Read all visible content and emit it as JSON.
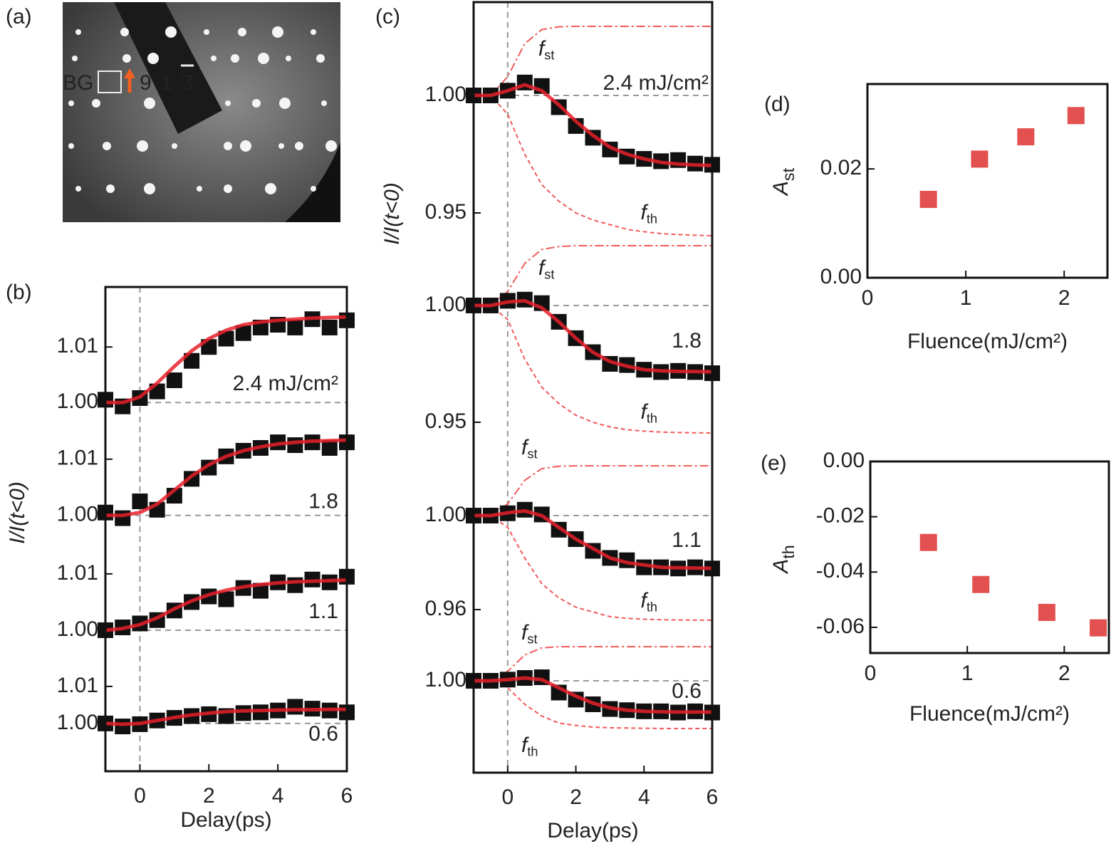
{
  "chart_data": [
    {
      "type": "image",
      "label": "(a)",
      "texts": [
        "BG",
        "9 1 3̄"
      ]
    },
    {
      "type": "stacked",
      "label": "(b)",
      "xlabel": "Delay(ps)",
      "ylabel": "I/I(t<0)",
      "xlim": [
        -1,
        6
      ],
      "xticks": [
        0,
        2,
        4,
        6
      ],
      "point_color": "#111111",
      "fit_color": "#e8202a",
      "x": [
        -1,
        -0.5,
        0,
        0.5,
        1,
        1.5,
        2,
        2.5,
        3,
        3.5,
        4,
        4.5,
        5,
        5.5,
        6
      ],
      "traces": [
        {
          "annotation": "2.4 mJ/cm²",
          "ylim": [
            0.999,
            1.0208
          ],
          "yticks": [
            {
              "value": 1,
              "label": "1.00"
            },
            1.01
          ],
          "baseline": 1,
          "points": [
            1.0005,
            0.9993,
            1.0008,
            1.002,
            1.004,
            1.0075,
            1.01,
            1.0115,
            1.0125,
            1.0135,
            1.014,
            1.0135,
            1.015,
            1.0135,
            1.0148
          ],
          "fit": [
            1.0,
            1.0,
            1.001,
            1.0035,
            1.0065,
            1.0093,
            1.0115,
            1.013,
            1.014,
            1.0145,
            1.0148,
            1.015,
            1.0152,
            1.0153,
            1.0154
          ]
        },
        {
          "annotation": "1.8",
          "ylim": [
            0.9973,
            1.0191
          ],
          "yticks": [
            {
              "value": 1,
              "label": "1.00"
            },
            1.01
          ],
          "baseline": 1,
          "points": [
            1.0005,
            0.9995,
            1.0025,
            1.001,
            1.0035,
            1.0065,
            1.0085,
            1.0105,
            1.0115,
            1.012,
            1.013,
            1.0125,
            1.013,
            1.012,
            1.013
          ],
          "fit": [
            1.0,
            1.0,
            1.0005,
            1.002,
            1.0045,
            1.007,
            1.009,
            1.0105,
            1.0115,
            1.0122,
            1.0127,
            1.013,
            1.0132,
            1.0133,
            1.0134
          ]
        },
        {
          "annotation": "1.1",
          "ylim": [
            0.9962,
            1.0177
          ],
          "yticks": [
            {
              "value": 1,
              "label": "1.00"
            },
            1.01
          ],
          "baseline": 1,
          "points": [
            1.0,
            1.0005,
            1.0012,
            1.0018,
            1.0035,
            1.005,
            1.006,
            1.0055,
            1.0075,
            1.007,
            1.0085,
            1.008,
            1.009,
            1.0085,
            1.0095
          ],
          "fit": [
            1.0,
            1.0003,
            1.001,
            1.0022,
            1.0038,
            1.0052,
            1.0063,
            1.0071,
            1.0077,
            1.0081,
            1.0084,
            1.0086,
            1.0087,
            1.0088,
            1.0089
          ]
        },
        {
          "annotation": "0.6",
          "ylim": [
            0.9871,
            1.0194
          ],
          "yticks": [
            {
              "value": 1,
              "label": "1.00"
            },
            1.01
          ],
          "baseline": 1,
          "points": [
            1.0,
            0.9992,
            0.9998,
            1.0008,
            1.0015,
            1.002,
            1.0025,
            1.002,
            1.0028,
            1.003,
            1.0035,
            1.0045,
            1.004,
            1.0035,
            1.003
          ],
          "fit": [
            1.0,
            0.9998,
            1.0,
            1.0008,
            1.0016,
            1.0023,
            1.0028,
            1.0032,
            1.0034,
            1.0035,
            1.0036,
            1.0037,
            1.0037,
            1.0038,
            1.0038
          ]
        }
      ]
    },
    {
      "type": "stacked",
      "label": "(c)",
      "xlabel": "Delay(ps)",
      "ylabel": "I/I(t<0)",
      "xlim": [
        -1,
        6
      ],
      "xticks": [
        0,
        2,
        4,
        6
      ],
      "point_color": "#111111",
      "fit_color": "#e8202a",
      "component_color": "#f05a5a",
      "x": [
        -1,
        -0.5,
        0,
        0.5,
        1,
        1.5,
        2,
        2.5,
        3,
        3.5,
        4,
        4.5,
        5,
        5.5,
        6
      ],
      "traces": [
        {
          "annotation": "2.4 mJ/cm²",
          "ylim": [
            0.93,
            1.0397
          ],
          "yticks": [
            {
              "value": 1,
              "label": "1.00"
            },
            0.95
          ],
          "baseline": 1,
          "st_label": {
            "symbol": "f",
            "subscript": "st"
          },
          "th_label": {
            "symbol": "f",
            "subscript": "th"
          },
          "points": [
            1.0,
            1.0,
            1.002,
            1.0055,
            1.004,
            0.995,
            0.987,
            0.982,
            0.977,
            0.974,
            0.973,
            0.972,
            0.9725,
            0.971,
            0.9705
          ],
          "fit": [
            1.0,
            1.0,
            1.002,
            1.0045,
            1.002,
            0.996,
            0.989,
            0.983,
            0.978,
            0.975,
            0.973,
            0.9715,
            0.9708,
            0.9704,
            0.9702
          ],
          "st": [
            1.0,
            1.0,
            1.008,
            1.022,
            1.028,
            1.0292,
            1.0294,
            1.0294,
            1.0294,
            1.0294,
            1.0294,
            1.0294,
            1.0294,
            1.0294,
            1.0294
          ],
          "th": [
            1.0,
            1.0,
            0.992,
            0.975,
            0.962,
            0.955,
            0.95,
            0.947,
            0.945,
            0.943,
            0.942,
            0.9412,
            0.9408,
            0.9405,
            0.9403
          ]
        },
        {
          "annotation": "1.8",
          "ylim": [
            0.9387,
            1.0195
          ],
          "yticks": [
            {
              "value": 1,
              "label": "1.00"
            },
            0.95
          ],
          "baseline": 1,
          "st_label": {
            "symbol": "f",
            "subscript": "st"
          },
          "th_label": {
            "symbol": "f",
            "subscript": "th"
          },
          "points": [
            1.0,
            1.0,
            1.002,
            1.0025,
            1.001,
            0.993,
            0.986,
            0.98,
            0.975,
            0.9745,
            0.9725,
            0.9715,
            0.972,
            0.9715,
            0.971
          ],
          "fit": [
            1.0,
            1.0,
            1.0015,
            1.002,
            0.999,
            0.993,
            0.986,
            0.98,
            0.976,
            0.974,
            0.9725,
            0.972,
            0.9718,
            0.9717,
            0.9716
          ],
          "st": [
            1.0,
            1.0,
            1.006,
            1.018,
            1.024,
            1.0252,
            1.0256,
            1.0256,
            1.0256,
            1.0256,
            1.0256,
            1.0256,
            1.0256,
            1.0256,
            1.0256
          ],
          "th": [
            1.0,
            1.0,
            0.994,
            0.977,
            0.965,
            0.958,
            0.953,
            0.95,
            0.948,
            0.9468,
            0.9462,
            0.9458,
            0.9456,
            0.9455,
            0.9454
          ]
        },
        {
          "annotation": "1.1",
          "ylim": [
            0.9497,
            1.0285
          ],
          "yticks": [
            {
              "value": 1,
              "label": "1.00"
            },
            0.96
          ],
          "baseline": 1,
          "st_label": {
            "symbol": "f",
            "subscript": "st"
          },
          "th_label": {
            "symbol": "f",
            "subscript": "th"
          },
          "points": [
            1.0,
            1.0,
            1.001,
            1.0025,
            1.0005,
            0.994,
            0.99,
            0.985,
            0.982,
            0.981,
            0.978,
            0.978,
            0.9775,
            0.978,
            0.9775
          ],
          "fit": [
            1.0,
            1.0,
            1.0012,
            1.002,
            1.0,
            0.995,
            0.99,
            0.986,
            0.982,
            0.98,
            0.979,
            0.978,
            0.9778,
            0.9777,
            0.9776
          ],
          "st": [
            1.0,
            1.0,
            1.005,
            1.015,
            1.02,
            1.021,
            1.0212,
            1.0212,
            1.0212,
            1.0212,
            1.0212,
            1.0212,
            1.0212,
            1.0212,
            1.0212
          ],
          "th": [
            1.0,
            1.0,
            0.995,
            0.982,
            0.971,
            0.965,
            0.961,
            0.959,
            0.957,
            0.9563,
            0.9559,
            0.9557,
            0.9556,
            0.9555,
            0.9555
          ]
        },
        {
          "annotation": "0.6",
          "ylim": [
            0.9609,
            1.02
          ],
          "yticks": [
            {
              "value": 1,
              "label": "1.00"
            }
          ],
          "baseline": 1,
          "st_label": {
            "symbol": "f",
            "subscript": "st"
          },
          "th_label": {
            "symbol": "f",
            "subscript": "th"
          },
          "points": [
            1.0,
            1.0,
            1.0005,
            1.0012,
            1.0015,
            0.995,
            0.992,
            0.99,
            0.988,
            0.9875,
            0.987,
            0.987,
            0.9865,
            0.987,
            0.9865
          ],
          "fit": [
            1.0,
            1.0,
            1.0005,
            1.0012,
            1.0005,
            0.997,
            0.9935,
            0.9905,
            0.9885,
            0.9875,
            0.987,
            0.9868,
            0.9867,
            0.9867,
            0.9867
          ],
          "st": [
            1.0,
            1.0,
            1.004,
            1.011,
            1.014,
            1.0145,
            1.0145,
            1.0145,
            1.0145,
            1.0145,
            1.0145,
            1.0145,
            1.0145,
            1.0145,
            1.0145
          ],
          "th": [
            1.0,
            1.0,
            0.997,
            0.99,
            0.985,
            0.982,
            0.981,
            0.9803,
            0.98,
            0.9799,
            0.9798,
            0.9797,
            0.9797,
            0.9797,
            0.9797
          ]
        }
      ]
    },
    {
      "type": "scatter",
      "label": "(d)",
      "xlabel": "Fluence(mJ/cm²)",
      "ylabel": {
        "symbol": "A",
        "subscript": "st"
      },
      "xlim": [
        0,
        2.44
      ],
      "ylim": [
        0,
        0.0356
      ],
      "xticks": [
        0,
        1,
        2
      ],
      "yticks": [
        {
          "value": 0,
          "label": "0.00"
        },
        0.02
      ],
      "x": [
        0.62,
        1.14,
        1.61,
        2.12
      ],
      "values": [
        0.0144,
        0.0218,
        0.0259,
        0.0298
      ],
      "color": "#e35050"
    },
    {
      "type": "scatter",
      "label": "(e)",
      "xlabel": "Fluence(mJ/cm²)",
      "ylabel": {
        "symbol": "A",
        "subscript": "th"
      },
      "xlim": [
        0,
        2.46
      ],
      "ylim": [
        -0.0693,
        0
      ],
      "xticks": [
        0,
        1,
        2
      ],
      "yticks": [
        {
          "value": 0,
          "label": "0.00"
        },
        -0.02,
        -0.04,
        -0.06
      ],
      "x": [
        0.6,
        1.14,
        1.82,
        2.35
      ],
      "values": [
        -0.0293,
        -0.0445,
        -0.0546,
        -0.0602
      ],
      "color": "#e35050"
    }
  ]
}
